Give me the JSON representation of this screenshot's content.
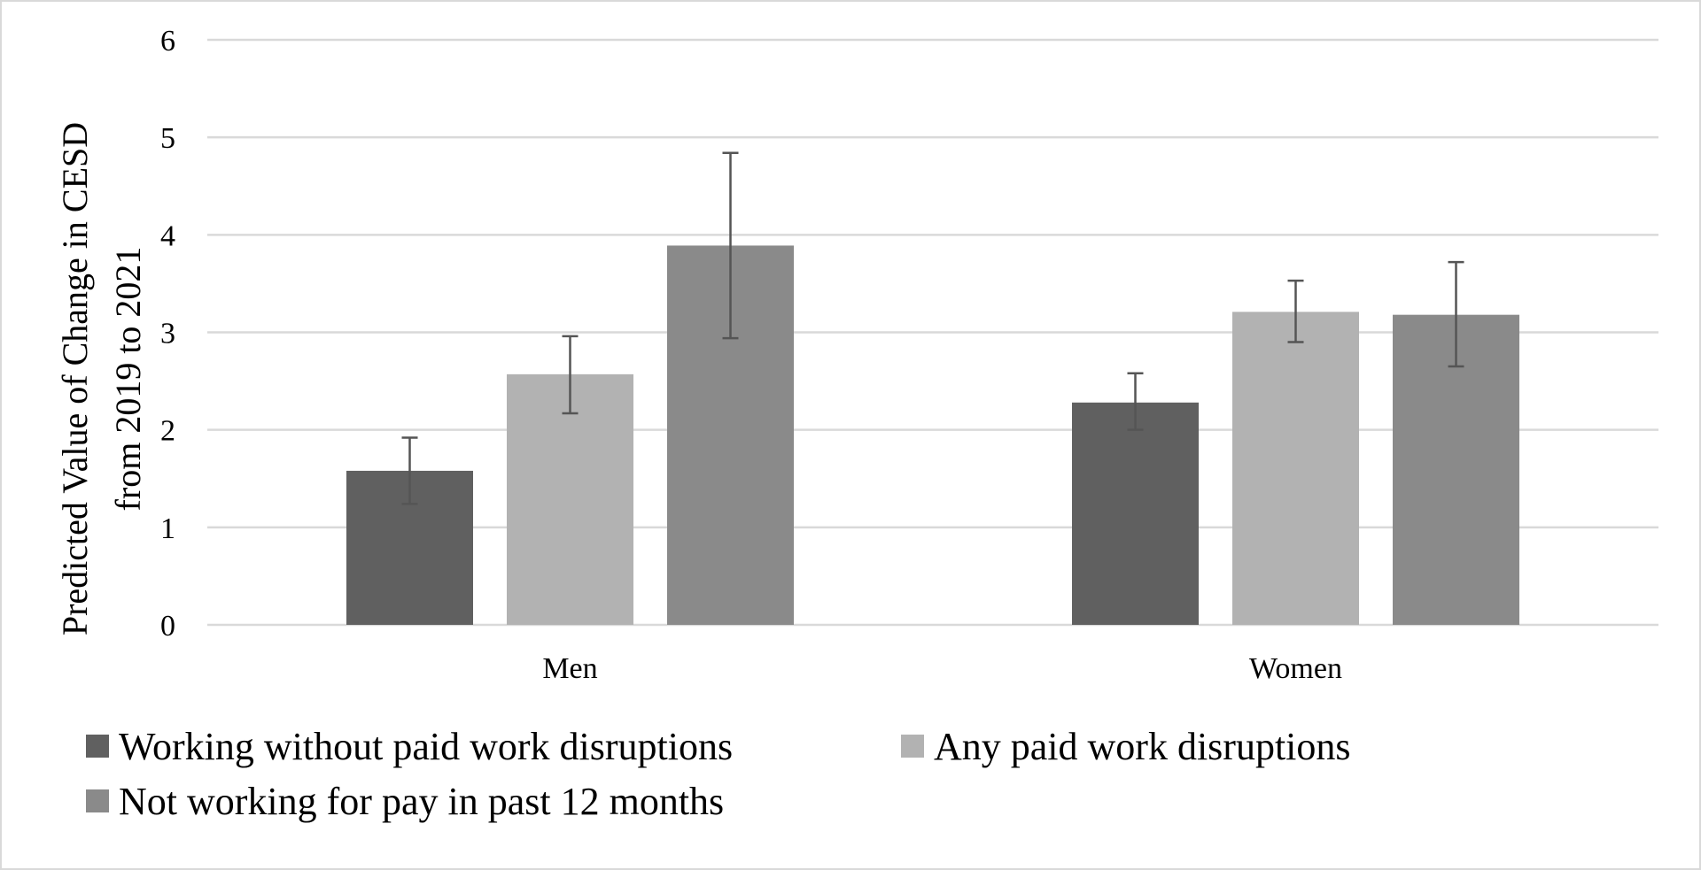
{
  "chart_data": {
    "type": "bar",
    "title": "",
    "xlabel": "",
    "ylabel_lines": [
      "Predicted Value of Change in CESD",
      "from 2019 to 2021"
    ],
    "ylim": [
      0,
      6
    ],
    "yticks": [
      "0",
      "1",
      "2",
      "3",
      "4",
      "5",
      "6"
    ],
    "grid": true,
    "legend_position": "bottom",
    "categories": [
      "Men",
      "Women"
    ],
    "series": [
      {
        "name": "Working without paid work disruptions",
        "color": "#606060",
        "values": [
          1.58,
          2.28
        ],
        "error_low": [
          1.24,
          2.0
        ],
        "error_high": [
          1.92,
          2.58
        ]
      },
      {
        "name": "Any paid work disruptions",
        "color": "#b2b2b2",
        "values": [
          2.57,
          3.21
        ],
        "error_low": [
          2.17,
          2.9
        ],
        "error_high": [
          2.96,
          3.53
        ]
      },
      {
        "name": "Not working for pay in past 12 months",
        "color": "#8a8a8a",
        "values": [
          3.89,
          3.18
        ],
        "error_low": [
          2.94,
          2.65
        ],
        "error_high": [
          4.84,
          3.72
        ]
      }
    ]
  }
}
